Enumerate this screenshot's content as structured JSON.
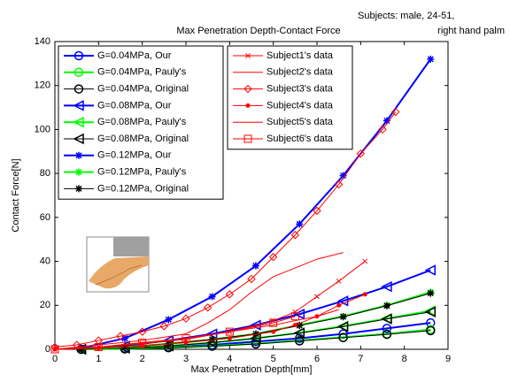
{
  "chart_data": {
    "type": "line",
    "title": "Max Penetration Depth-Contact Force",
    "annotation": [
      "Subjects: male, 24-51,",
      "right hand palm"
    ],
    "x_label": "Max Penetration Depth[mm]",
    "y_label": "Contact Force[N]",
    "xlim": [
      0,
      9
    ],
    "ylim": [
      0,
      140
    ],
    "xticks": [
      0,
      1,
      2,
      3,
      4,
      5,
      6,
      7,
      8,
      9
    ],
    "yticks": [
      0,
      20,
      40,
      60,
      80,
      100,
      120,
      140
    ],
    "series": [
      {
        "name": "G=0.04MPa, Our",
        "color": "#0000ff",
        "marker": "o",
        "width": 2,
        "legend": 1,
        "x": [
          0.6,
          1.6,
          2.6,
          3.6,
          4.6,
          5.6,
          6.6,
          7.6,
          8.6
        ],
        "values": [
          0,
          0.5,
          1,
          2,
          3.5,
          5,
          7,
          9.5,
          12
        ]
      },
      {
        "name": "G=0.04MPa, Pauly's",
        "color": "#00ff00",
        "marker": "o",
        "width": 2,
        "legend": 1,
        "x": [
          0.6,
          1.6,
          2.6,
          3.6,
          4.6,
          5.6,
          6.6,
          7.6,
          8.6
        ],
        "values": [
          0,
          0.2,
          0.7,
          1.5,
          2.5,
          4,
          5.5,
          7,
          9
        ]
      },
      {
        "name": "G=0.04MPa, Original",
        "color": "#000000",
        "marker": "o",
        "width": 1,
        "legend": 1,
        "x": [
          0.6,
          1.6,
          2.6,
          3.6,
          4.6,
          5.6,
          6.6,
          7.6,
          8.6
        ],
        "values": [
          0,
          0.2,
          0.7,
          1.4,
          2.4,
          3.8,
          5.3,
          6.8,
          8.5
        ]
      },
      {
        "name": "G=0.08MPa, Our",
        "color": "#0000ff",
        "marker": "<",
        "width": 2,
        "legend": 1,
        "x": [
          0.6,
          1.6,
          2.6,
          3.6,
          4.6,
          5.6,
          6.6,
          7.6,
          8.6
        ],
        "values": [
          0,
          1.5,
          4,
          7,
          11,
          16,
          22,
          28.5,
          36
        ]
      },
      {
        "name": "G=0.08MPa, Pauly's",
        "color": "#00ff00",
        "marker": "<",
        "width": 2,
        "legend": 1,
        "x": [
          0.6,
          1.6,
          2.6,
          3.6,
          4.6,
          5.6,
          6.6,
          7.6,
          8.6
        ],
        "values": [
          0,
          0.5,
          1.5,
          3,
          5,
          7.5,
          10.5,
          14,
          17.5
        ]
      },
      {
        "name": "G=0.08MPa, Original",
        "color": "#000000",
        "marker": "<",
        "width": 1,
        "legend": 1,
        "x": [
          0.6,
          1.6,
          2.6,
          3.6,
          4.6,
          5.6,
          6.6,
          7.6,
          8.6
        ],
        "values": [
          0,
          0.5,
          1.5,
          3,
          5,
          7.4,
          10.3,
          13.8,
          17
        ]
      },
      {
        "name": "G=0.12MPa, Our",
        "color": "#0000ff",
        "marker": "*",
        "width": 2,
        "legend": 1,
        "x": [
          0.6,
          1.6,
          2.6,
          3.6,
          4.6,
          5.6,
          6.6,
          7.6,
          8.6
        ],
        "values": [
          0.5,
          5,
          13.5,
          24,
          38,
          57,
          79,
          104,
          132
        ]
      },
      {
        "name": "G=0.12MPa, Pauly's",
        "color": "#00ff00",
        "marker": "*",
        "width": 2,
        "legend": 1,
        "x": [
          0.6,
          1.6,
          2.6,
          3.6,
          4.6,
          5.6,
          6.6,
          7.6,
          8.6
        ],
        "values": [
          0,
          1,
          2.5,
          4.5,
          7,
          11,
          15,
          20,
          26
        ]
      },
      {
        "name": "G=0.12MPa, Original",
        "color": "#000000",
        "marker": "*",
        "width": 1,
        "legend": 1,
        "x": [
          0.6,
          1.6,
          2.6,
          3.6,
          4.6,
          5.6,
          6.6,
          7.6,
          8.6
        ],
        "values": [
          0,
          1,
          2.5,
          4.5,
          7,
          10.8,
          14.8,
          19.8,
          25.5
        ]
      },
      {
        "name": "Subject1's data",
        "color": "#ff0000",
        "marker": "x",
        "width": 1,
        "legend": 2,
        "x": [
          0,
          1,
          2,
          3,
          4,
          5,
          5.5,
          6,
          6.5,
          7.1
        ],
        "values": [
          0,
          1,
          2.5,
          4.5,
          8,
          13,
          17,
          24,
          31,
          40
        ]
      },
      {
        "name": "Subject2's data",
        "color": "#ff0000",
        "marker": null,
        "width": 1,
        "legend": 2,
        "x": [
          0,
          1,
          2,
          3,
          3.5,
          4,
          4.5,
          5,
          5.5,
          6,
          6.6
        ],
        "values": [
          0,
          2,
          4,
          7,
          12,
          18,
          26,
          33,
          37,
          41,
          44
        ]
      },
      {
        "name": "Subject3's data",
        "color": "#ff0000",
        "marker": "d",
        "width": 1,
        "legend": 2,
        "x": [
          0,
          0.5,
          1,
          1.5,
          2,
          2.5,
          3,
          3.5,
          4,
          4.5,
          5,
          5.5,
          6,
          6.5,
          7,
          7.5,
          7.8
        ],
        "values": [
          1,
          2,
          4,
          6,
          8,
          10.5,
          14,
          19,
          25,
          32,
          42,
          52,
          63,
          75,
          89,
          100,
          108
        ]
      },
      {
        "name": "Subject4's data",
        "color": "#ff0000",
        "marker": ".",
        "width": 1,
        "legend": 2,
        "x": [
          0,
          1,
          2,
          3,
          4,
          5,
          5.5,
          6,
          6.5,
          7.1
        ],
        "values": [
          0,
          0.5,
          1.5,
          3,
          5,
          8,
          11,
          15,
          20,
          25
        ]
      },
      {
        "name": "Subject5's data",
        "color": "#ff0000",
        "marker": null,
        "width": 1,
        "legend": 2,
        "x": [
          0,
          1,
          2,
          3,
          4,
          5,
          5.5,
          6,
          6.5
        ],
        "values": [
          0,
          1,
          3,
          5,
          8,
          11,
          13,
          15,
          18
        ]
      },
      {
        "name": "Subject6's data",
        "color": "#ff0000",
        "marker": "s",
        "width": 1,
        "legend": 2,
        "x": [
          0,
          1,
          2,
          3,
          4,
          5,
          5.5
        ],
        "values": [
          0,
          1,
          3,
          5,
          8,
          12,
          15
        ]
      }
    ]
  }
}
